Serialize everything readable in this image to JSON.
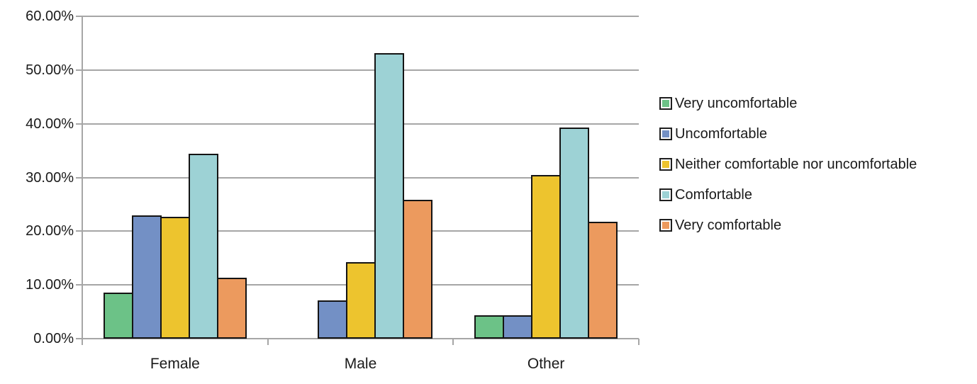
{
  "chart_data": {
    "type": "bar",
    "title": "",
    "xlabel": "",
    "ylabel": "",
    "categories": [
      "Female",
      "Male",
      "Other"
    ],
    "series": [
      {
        "name": "Very uncomfortable",
        "color": "#6cc287",
        "values": [
          8.6,
          0,
          4.4
        ]
      },
      {
        "name": "Uncomfortable",
        "color": "#7390c5",
        "values": [
          22.9,
          7.1,
          4.4
        ]
      },
      {
        "name": "Neither comfortable nor uncomfortable",
        "color": "#edc42e",
        "values": [
          22.7,
          14.3,
          30.5
        ]
      },
      {
        "name": "Comfortable",
        "color": "#9dd2d5",
        "values": [
          34.4,
          53.1,
          39.3
        ]
      },
      {
        "name": "Very comfortable",
        "color": "#ec9a5e",
        "values": [
          11.3,
          25.9,
          21.7
        ]
      }
    ],
    "ylim": [
      0,
      60
    ],
    "y_tick_step": 10,
    "y_tick_labels": [
      "0.00%",
      "10.00%",
      "20.00%",
      "30.00%",
      "40.00%",
      "50.00%",
      "60.00%"
    ],
    "grid": true,
    "legend_position": "right"
  },
  "style": {
    "gridline_color": "#a6a6a6",
    "axis_color": "#a6a6a6",
    "bar_border_color": "#141414",
    "text_color": "#1a1a1a",
    "background": "#ffffff"
  }
}
